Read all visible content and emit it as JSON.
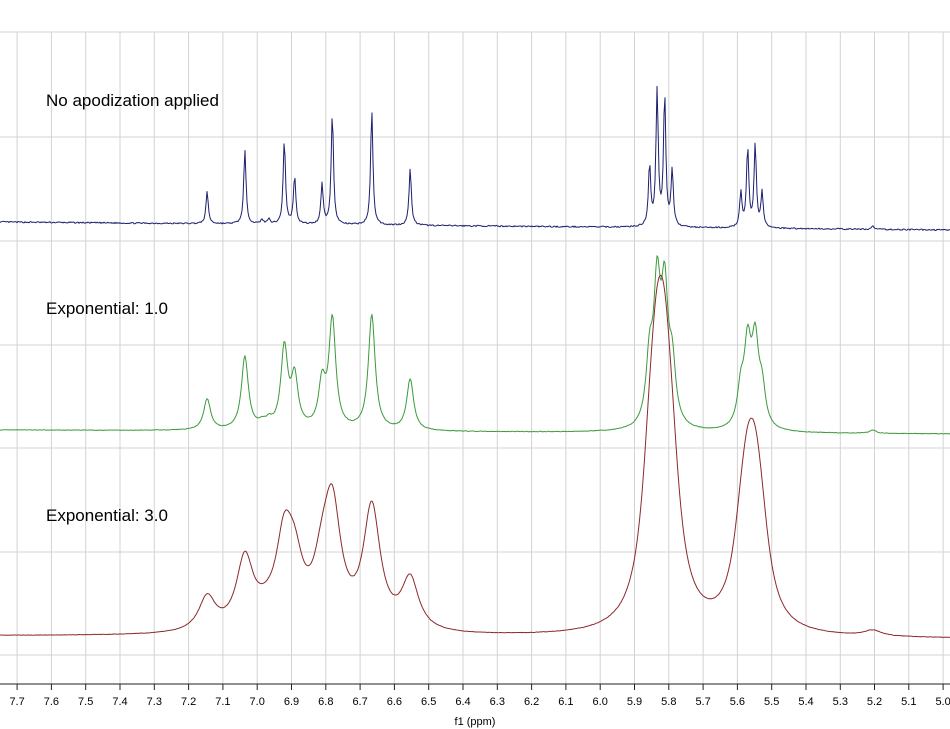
{
  "chart_data": {
    "type": "line",
    "xlabel": "f1 (ppm)",
    "xlim": [
      7.75,
      4.98
    ],
    "x_reversed": true,
    "ticks": [
      7.7,
      7.6,
      7.5,
      7.4,
      7.3,
      7.2,
      7.1,
      7.0,
      6.9,
      6.8,
      6.7,
      6.6,
      6.5,
      6.4,
      6.3,
      6.2,
      6.1,
      6.0,
      5.9,
      5.8,
      5.7,
      5.6,
      5.5,
      5.4,
      5.3,
      5.2,
      5.1,
      5.0
    ],
    "tick_labels": [
      "7.7",
      "7.6",
      "7.5",
      "7.4",
      "7.3",
      "7.2",
      "7.1",
      "7.0",
      "6.9",
      "6.8",
      "6.7",
      "6.6",
      "6.5",
      "6.4",
      "6.3",
      "6.2",
      "6.1",
      "6.0",
      "5.9",
      "5.8",
      "5.7",
      "5.6",
      "5.5",
      "5.4",
      "5.3",
      "5.2",
      "5.1",
      "5.0"
    ],
    "grid": true,
    "stacked": true,
    "series": [
      {
        "label": "No apodization applied",
        "color": "#1c1f6e",
        "linewidth_ppm": 0.004,
        "noise": 0.012,
        "peaks": [
          [
            7.146,
            0.28
          ],
          [
            7.036,
            0.64
          ],
          [
            6.986,
            0.04
          ],
          [
            6.966,
            0.05
          ],
          [
            6.921,
            0.73
          ],
          [
            6.891,
            0.42
          ],
          [
            6.811,
            0.35
          ],
          [
            6.781,
            0.97
          ],
          [
            6.666,
            1.0
          ],
          [
            6.554,
            0.5
          ],
          [
            5.856,
            0.53
          ],
          [
            5.834,
            1.18
          ],
          [
            5.812,
            1.14
          ],
          [
            5.79,
            0.48
          ],
          [
            5.59,
            0.3
          ],
          [
            5.57,
            0.69
          ],
          [
            5.548,
            0.72
          ],
          [
            5.528,
            0.3
          ],
          [
            5.205,
            0.03
          ]
        ]
      },
      {
        "label": "Exponential: 1.0",
        "color": "#3c9a3c",
        "linewidth_ppm": 0.012,
        "noise": 0.004,
        "peaks": [
          [
            7.146,
            0.2
          ],
          [
            7.036,
            0.47
          ],
          [
            6.986,
            0.03
          ],
          [
            6.966,
            0.04
          ],
          [
            6.921,
            0.52
          ],
          [
            6.891,
            0.32
          ],
          [
            6.811,
            0.28
          ],
          [
            6.781,
            0.7
          ],
          [
            6.666,
            0.74
          ],
          [
            6.554,
            0.33
          ],
          [
            5.856,
            0.4
          ],
          [
            5.834,
            0.84
          ],
          [
            5.812,
            0.8
          ],
          [
            5.79,
            0.36
          ],
          [
            5.59,
            0.23
          ],
          [
            5.57,
            0.5
          ],
          [
            5.548,
            0.52
          ],
          [
            5.528,
            0.23
          ],
          [
            5.205,
            0.02
          ]
        ]
      },
      {
        "label": "Exponential: 3.0",
        "color": "#8b2a2a",
        "linewidth_ppm": 0.03,
        "noise": 0.0015,
        "peaks": [
          [
            7.146,
            0.12
          ],
          [
            7.036,
            0.25
          ],
          [
            6.986,
            0.02
          ],
          [
            6.966,
            0.02
          ],
          [
            6.921,
            0.29
          ],
          [
            6.891,
            0.18
          ],
          [
            6.811,
            0.16
          ],
          [
            6.781,
            0.4
          ],
          [
            6.666,
            0.43
          ],
          [
            6.554,
            0.18
          ],
          [
            5.856,
            0.3
          ],
          [
            5.834,
            0.59
          ],
          [
            5.812,
            0.57
          ],
          [
            5.79,
            0.27
          ],
          [
            5.59,
            0.16
          ],
          [
            5.57,
            0.34
          ],
          [
            5.548,
            0.35
          ],
          [
            5.528,
            0.16
          ],
          [
            5.205,
            0.02
          ]
        ]
      }
    ]
  }
}
